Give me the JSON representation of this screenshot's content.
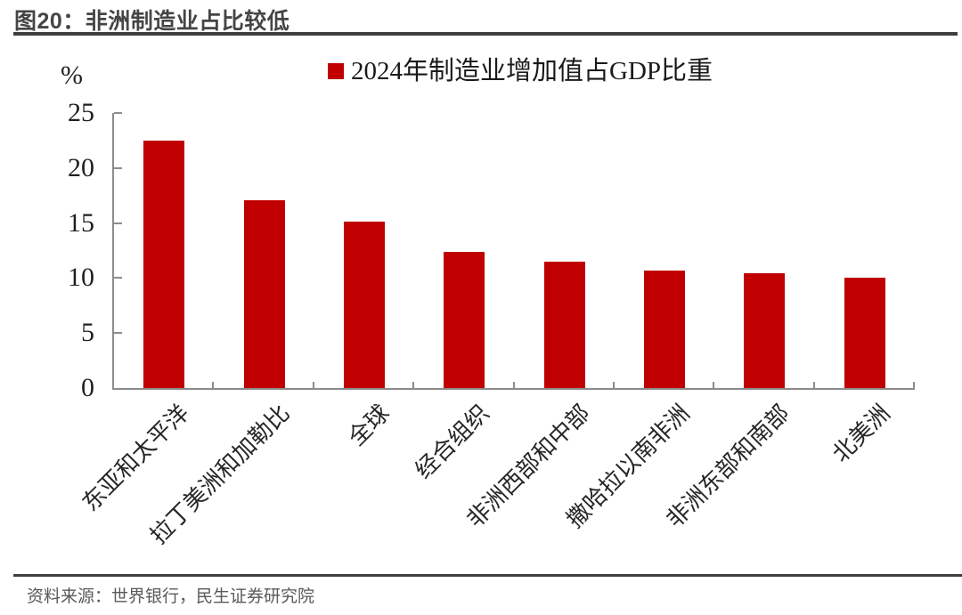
{
  "header": {
    "title": "图20：非洲制造业占比较低"
  },
  "chart_data": {
    "type": "bar",
    "title": "图20：非洲制造业占比较低",
    "legend_label": "2024年制造业增加值占GDP比重",
    "legend_position": "top-center",
    "unit_label": "%",
    "categories": [
      "东亚和太平洋",
      "拉丁美洲和加勒比",
      "全球",
      "经合组织",
      "非洲西部和中部",
      "撒哈拉以南非洲",
      "非洲东部和南部",
      "北美洲"
    ],
    "values": [
      22.5,
      17.1,
      15.1,
      12.4,
      11.5,
      10.7,
      10.4,
      10.0
    ],
    "ylim": [
      0,
      25
    ],
    "yticks": [
      0,
      5,
      10,
      15,
      20,
      25
    ],
    "grid": false,
    "xlabel": "",
    "ylabel": "%"
  },
  "footer": {
    "source": "资料来源：世界银行，民生证券研究院"
  },
  "colors": {
    "bar": "#C00000",
    "axis": "#8C8C8C",
    "title_text": "#454545",
    "rule": "#3F3F3F",
    "source_text": "#595959"
  }
}
